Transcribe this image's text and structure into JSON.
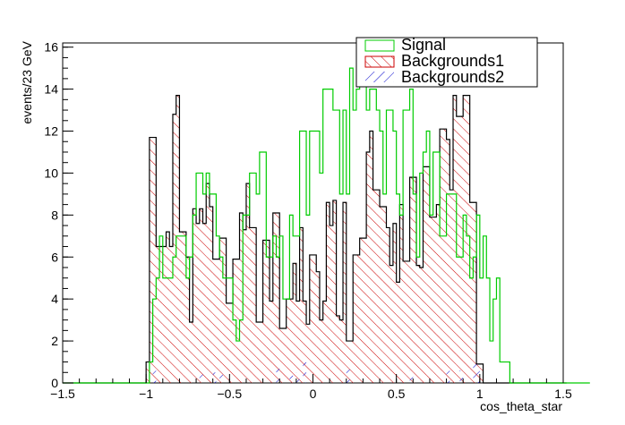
{
  "chart_data": {
    "type": "histogram",
    "xlabel": "cos_theta_star",
    "ylabel": "events/23 GeV",
    "xlim": [
      -1.5,
      1.5
    ],
    "ylim": [
      0,
      16.2
    ],
    "x_ticks": [
      -1.5,
      -1,
      -0.5,
      0,
      0.5,
      1,
      1.5
    ],
    "x_tick_labels": [
      "−1.5",
      "−1",
      "−0.5",
      "0",
      "0.5",
      "1",
      "1.5"
    ],
    "y_ticks": [
      0,
      2,
      4,
      6,
      8,
      10,
      12,
      14,
      16
    ],
    "y_tick_labels": [
      "0",
      "2",
      "4",
      "6",
      "8",
      "10",
      "12",
      "14",
      "16"
    ],
    "legend_position": "top-right",
    "grid": false,
    "bin_edges_start": -1.5,
    "bin_width": 0.02,
    "series": [
      {
        "name": "Signal",
        "color": "#00cc00",
        "fill": "none",
        "values": [
          0,
          0,
          0,
          0,
          0,
          0,
          0,
          0,
          0,
          0,
          0,
          0,
          0,
          0,
          0,
          0,
          0,
          0,
          0,
          0,
          0,
          0,
          0,
          0,
          0,
          0,
          1,
          4,
          5,
          7,
          5,
          5,
          5,
          6,
          7,
          7,
          7,
          5,
          6,
          8,
          10,
          10,
          9,
          10,
          9,
          9,
          7,
          6,
          5,
          5,
          5,
          3,
          2,
          3,
          8,
          8,
          10,
          10,
          9,
          11,
          11,
          6,
          6,
          7,
          6,
          7,
          4,
          4,
          8,
          7,
          7,
          12,
          12,
          8,
          12,
          12,
          12,
          10,
          14,
          14,
          14,
          13,
          13,
          9,
          13,
          9,
          15,
          13,
          14,
          16,
          16,
          13,
          14,
          14,
          13,
          12,
          9,
          13,
          13,
          12,
          9,
          8,
          13,
          13,
          14,
          9,
          6,
          10,
          11,
          12,
          8,
          11,
          11,
          7,
          7,
          9,
          9,
          9,
          6,
          6,
          8,
          7,
          5,
          6,
          8,
          5,
          7,
          5,
          2,
          4,
          5,
          1,
          1,
          1,
          0,
          0,
          0,
          0,
          0,
          0,
          0,
          0,
          0,
          0,
          0,
          0,
          0,
          0,
          0,
          0,
          0,
          0,
          0,
          0,
          0,
          0,
          0,
          0
        ]
      },
      {
        "name": "Backgrounds1",
        "color": "#cc0000",
        "fill": "hatch-red",
        "values": [
          0,
          0,
          0,
          0,
          0,
          0,
          0,
          0,
          0,
          0,
          0,
          0,
          0,
          0,
          0,
          0,
          0,
          0,
          0,
          0,
          0,
          0,
          0,
          0,
          0,
          1,
          11.7,
          11.7,
          6.5,
          6.5,
          6.5,
          7.2,
          6.5,
          12.8,
          13.7,
          7.2,
          7.2,
          6,
          2.9,
          8.3,
          7.6,
          8.3,
          7.6,
          9.5,
          8.4,
          5.9,
          5.9,
          6.9,
          6.9,
          3.8,
          3.8,
          5.9,
          5.9,
          8.1,
          7.3,
          9.5,
          7.4,
          7.4,
          2.9,
          2.9,
          6.8,
          6.8,
          3.9,
          8.1,
          8.1,
          2.6,
          2.6,
          4,
          4,
          5.7,
          3.9,
          7.4,
          3.9,
          2.8,
          6.1,
          6.1,
          5.3,
          3,
          3.9,
          8.6,
          7.5,
          8.7,
          3.2,
          3,
          8.6,
          2,
          2,
          6.1,
          6.1,
          6.9,
          6.9,
          11,
          12,
          9.2,
          9.2,
          8.4,
          8.4,
          7.4,
          5.6,
          7.6,
          4.8,
          8.5,
          5.8,
          5.8,
          9.8,
          9.8,
          5.6,
          5.5,
          10.3,
          10.3,
          7.9,
          7.9,
          8.5,
          12.1,
          12.1,
          11.6,
          9.2,
          13.7,
          12.7,
          12.7,
          13.7,
          13.7,
          8.6,
          8.6,
          0.9,
          0.9,
          0,
          0,
          0,
          0,
          0,
          0,
          0,
          0,
          0,
          0,
          0,
          0,
          0,
          0,
          0,
          0,
          0,
          0,
          0,
          0,
          0,
          0,
          0,
          0,
          0
        ]
      },
      {
        "name": "Backgrounds2",
        "color": "#0000cc",
        "fill": "hatch-blue",
        "values": [
          0,
          0,
          0,
          0,
          0,
          0,
          0,
          0,
          0,
          0,
          0,
          0,
          0,
          0,
          0,
          0,
          0,
          0,
          0,
          0,
          0,
          0,
          0,
          0,
          0,
          0,
          0,
          0.6,
          0,
          0,
          0,
          0,
          0,
          0,
          0,
          0,
          0,
          0,
          0,
          0,
          0,
          0.6,
          0,
          0,
          0,
          0.5,
          0,
          0.7,
          0,
          0,
          0,
          0,
          0,
          0,
          0,
          0,
          0,
          0,
          0,
          0,
          0,
          0,
          0,
          0,
          0.7,
          0,
          0,
          0,
          0.6,
          0,
          0.5,
          0,
          1.1,
          0,
          0,
          0,
          0,
          0,
          0,
          0,
          0,
          0,
          0,
          0,
          0,
          0.8,
          0,
          0,
          0,
          0,
          0,
          0,
          0,
          0,
          0,
          0,
          0,
          0,
          0,
          0,
          0,
          0,
          0,
          0,
          0.6,
          0,
          0,
          0,
          0,
          0,
          0,
          0,
          0,
          0,
          0,
          0.8,
          0,
          0,
          0,
          0.6,
          0,
          0,
          0,
          1,
          0.9,
          0,
          0,
          0,
          0,
          0,
          0,
          0,
          0,
          0,
          0,
          0,
          0,
          0,
          0,
          0,
          0,
          0,
          0,
          0,
          0,
          0,
          0,
          0,
          0,
          0,
          0,
          0,
          0
        ]
      }
    ]
  }
}
